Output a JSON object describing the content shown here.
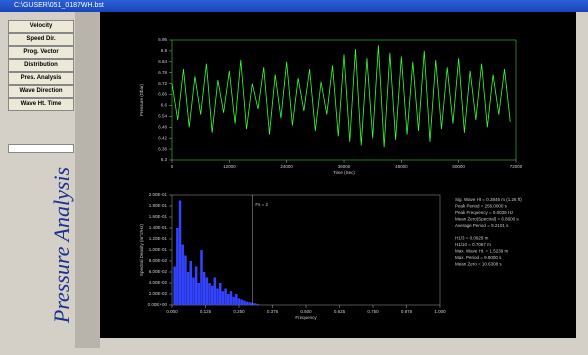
{
  "window": {
    "title": "C:\\GUSER\\051_0187WH.bst"
  },
  "sidebar": {
    "buttons": [
      "Velocity",
      "Speed Dir.",
      "Prog. Vector",
      "Distribution",
      "Pres. Analysis",
      "Wave Direction",
      "Wave Ht. Time"
    ]
  },
  "side_title": "Pressure Analysis",
  "stats": [
    "Sig. Wave Ht = 0.3846 m (1.26 ft)",
    "Peak Period = 256.0000 s",
    "Peak Frequency = 0.0039 Hz",
    "Mean Zero(Spectral) = 6.8600 s",
    "Average Period = 9.2101 s",
    "H1/3 = 0.0929 m",
    "H1/10 = 0.7067 m",
    "Max. Wave Ht. = 1.5239 m",
    "Max. Period = 9.8000 s",
    "Mean Zero = 10.6308 s"
  ],
  "chart_data": [
    {
      "type": "line",
      "x_label": "Time (Sec)",
      "y_label": "Pressure (Dbar)",
      "color": "#33ff33",
      "x": [
        0,
        1200,
        2400,
        3600,
        4800,
        6000,
        7200,
        8400,
        9600,
        10800,
        12000,
        13200,
        14400,
        15600,
        16800,
        18000,
        19200,
        20400,
        21600,
        22800,
        24000,
        25200,
        26400,
        27600,
        28800,
        30000,
        31200,
        32400,
        33600,
        34800,
        36000,
        37200,
        38400,
        39600,
        40800,
        42000,
        43200,
        44400,
        45600,
        46800,
        48000,
        49200,
        50400,
        51600,
        52800,
        54000,
        55200,
        56400,
        57600,
        58800,
        60000,
        61200,
        62400,
        63600,
        64800,
        66000,
        67200,
        68400,
        69600,
        70800
      ],
      "values": [
        6.72,
        6.52,
        6.8,
        6.48,
        6.76,
        6.55,
        6.83,
        6.45,
        6.74,
        6.56,
        6.79,
        6.5,
        6.85,
        6.47,
        6.72,
        6.58,
        6.81,
        6.44,
        6.77,
        6.53,
        6.84,
        6.49,
        6.75,
        6.57,
        6.8,
        6.46,
        6.73,
        6.55,
        6.82,
        6.43,
        6.88,
        6.4,
        6.91,
        6.38,
        6.86,
        6.42,
        6.93,
        6.37,
        6.89,
        6.41,
        6.87,
        6.44,
        6.84,
        6.46,
        6.9,
        6.4,
        6.85,
        6.47,
        6.81,
        6.5,
        6.86,
        6.45,
        6.79,
        6.52,
        6.83,
        6.48,
        6.77,
        6.55,
        6.8,
        6.51
      ],
      "xlim": [
        0,
        72000
      ],
      "xticks": [
        0,
        12000,
        24000,
        36000,
        48000,
        60000,
        72000
      ],
      "ylim": [
        6.3,
        6.96
      ],
      "yticks": [
        6.3,
        6.36,
        6.42,
        6.48,
        6.54,
        6.6,
        6.66,
        6.72,
        6.78,
        6.84,
        6.9,
        6.96
      ]
    },
    {
      "type": "bar",
      "x_label": "Frequency",
      "y_label": "Spectral Density (m^2/Hz)",
      "color": "#3344ff",
      "annotation": "Fs = 2",
      "annotation_x": 0.3,
      "x": [
        0.01,
        0.02,
        0.03,
        0.04,
        0.05,
        0.06,
        0.07,
        0.08,
        0.09,
        0.1,
        0.11,
        0.12,
        0.13,
        0.14,
        0.15,
        0.16,
        0.17,
        0.18,
        0.19,
        0.2,
        0.21,
        0.22,
        0.23,
        0.24,
        0.25,
        0.26,
        0.27,
        0.28,
        0.29,
        0.3,
        0.31,
        0.32
      ],
      "values": [
        0.07,
        0.14,
        0.19,
        0.11,
        0.09,
        0.06,
        0.08,
        0.05,
        0.07,
        0.04,
        0.1,
        0.06,
        0.05,
        0.04,
        0.035,
        0.05,
        0.03,
        0.04,
        0.025,
        0.03,
        0.02,
        0.025,
        0.015,
        0.02,
        0.012,
        0.01,
        0.008,
        0.006,
        0.005,
        0.004,
        0.003,
        0.002
      ],
      "xlim": [
        0,
        1
      ],
      "xticks": [
        {
          "value": 0,
          "label": "0.000"
        },
        {
          "value": 0.125,
          "label": "0.125"
        },
        {
          "value": 0.25,
          "label": "0.250"
        },
        {
          "value": 0.375,
          "label": "0.375"
        },
        {
          "value": 0.5,
          "label": "0.500"
        },
        {
          "value": 0.625,
          "label": "0.625"
        },
        {
          "value": 0.75,
          "label": "0.750"
        },
        {
          "value": 0.875,
          "label": "0.875"
        },
        {
          "value": 1,
          "label": "1.000"
        }
      ],
      "ylim": [
        0,
        0.2
      ],
      "yticks": [
        {
          "value": 0,
          "label": "0.00E+00"
        },
        {
          "value": 0.02,
          "label": "2.00E-02"
        },
        {
          "value": 0.04,
          "label": "4.00E-02"
        },
        {
          "value": 0.06,
          "label": "6.00E-02"
        },
        {
          "value": 0.08,
          "label": "8.00E-02"
        },
        {
          "value": 0.1,
          "label": "1.00E-01"
        },
        {
          "value": 0.12,
          "label": "1.20E-01"
        },
        {
          "value": 0.14,
          "label": "1.40E-01"
        },
        {
          "value": 0.16,
          "label": "1.60E-01"
        },
        {
          "value": 0.18,
          "label": "1.80E-01"
        },
        {
          "value": 0.2,
          "label": "2.00E-01"
        }
      ]
    }
  ]
}
